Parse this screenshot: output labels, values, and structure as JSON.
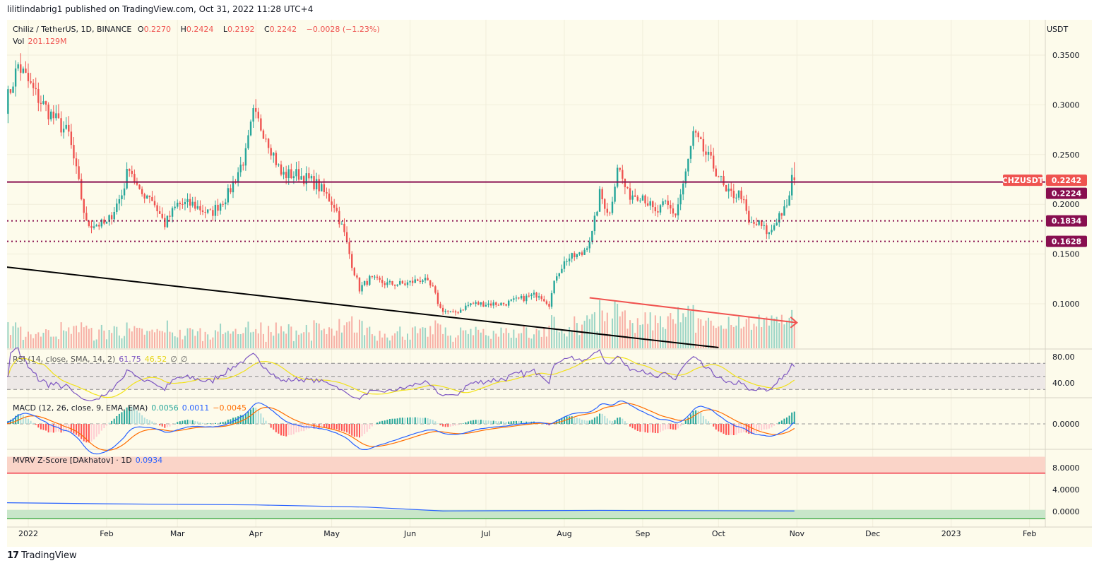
{
  "published": "lilitlindabrig1 published on TradingView.com, Oct 31, 2022 11:28 UTC+4",
  "legend": {
    "symbol": "Chiliz / TetherUS, 1D, BINANCE",
    "o_label": "O",
    "o": "0.2270",
    "h_label": "H",
    "h": "0.2424",
    "l_label": "L",
    "l": "0.2192",
    "c_label": "C",
    "c": "0.2242",
    "change": "−0.0028 (−1.23%)",
    "vol_label": "Vol",
    "vol": "201.129M"
  },
  "currency": "USDT",
  "footer_logo": "TradingView",
  "colors": {
    "up": "#26a69a",
    "down": "#ef5350",
    "level": "#880e4f",
    "background": "#fdfbeb",
    "rsi": "#7e57c2",
    "rsi_ma": "#f5e51b",
    "macd": "#2962ff",
    "signal": "#ff6d00",
    "mvrv": "#2962ff"
  },
  "chart_data": [
    {
      "type": "candlestick",
      "title": "Chiliz / TetherUS, 1D, BINANCE",
      "y_axis_ticks": [
        "0.3500",
        "0.3000",
        "0.2500",
        "0.2000",
        "0.1500",
        "0.1000"
      ],
      "ylim": [
        0.05,
        0.37
      ],
      "x_axis_ticks": [
        "2022",
        "Feb",
        "Mar",
        "Apr",
        "May",
        "Jun",
        "Jul",
        "Aug",
        "Sep",
        "Oct",
        "Nov",
        "Dec",
        "2023",
        "Feb"
      ],
      "close_keypoints": [
        [
          "2021-12-23",
          0.3
        ],
        [
          "2021-12-28",
          0.34
        ],
        [
          "2022-01-04",
          0.31
        ],
        [
          "2022-01-10",
          0.29
        ],
        [
          "2022-01-17",
          0.27
        ],
        [
          "2022-01-21",
          0.22
        ],
        [
          "2022-01-24",
          0.18
        ],
        [
          "2022-02-01",
          0.18
        ],
        [
          "2022-02-07",
          0.21
        ],
        [
          "2022-02-10",
          0.24
        ],
        [
          "2022-02-14",
          0.21
        ],
        [
          "2022-02-18",
          0.21
        ],
        [
          "2022-02-24",
          0.18
        ],
        [
          "2022-03-01",
          0.2
        ],
        [
          "2022-03-07",
          0.2
        ],
        [
          "2022-03-14",
          0.19
        ],
        [
          "2022-03-21",
          0.21
        ],
        [
          "2022-03-28",
          0.25
        ],
        [
          "2022-03-31",
          0.29
        ],
        [
          "2022-04-05",
          0.27
        ],
        [
          "2022-04-11",
          0.23
        ],
        [
          "2022-04-18",
          0.23
        ],
        [
          "2022-04-25",
          0.22
        ],
        [
          "2022-05-02",
          0.2
        ],
        [
          "2022-05-06",
          0.17
        ],
        [
          "2022-05-09",
          0.14
        ],
        [
          "2022-05-12",
          0.115
        ],
        [
          "2022-05-16",
          0.125
        ],
        [
          "2022-05-23",
          0.12
        ],
        [
          "2022-05-30",
          0.12
        ],
        [
          "2022-06-06",
          0.125
        ],
        [
          "2022-06-10",
          0.115
        ],
        [
          "2022-06-13",
          0.095
        ],
        [
          "2022-06-18",
          0.09
        ],
        [
          "2022-06-25",
          0.1
        ],
        [
          "2022-07-01",
          0.1
        ],
        [
          "2022-07-08",
          0.1
        ],
        [
          "2022-07-15",
          0.105
        ],
        [
          "2022-07-22",
          0.11
        ],
        [
          "2022-07-26",
          0.1
        ],
        [
          "2022-07-29",
          0.13
        ],
        [
          "2022-08-02",
          0.145
        ],
        [
          "2022-08-08",
          0.15
        ],
        [
          "2022-08-12",
          0.17
        ],
        [
          "2022-08-15",
          0.21
        ],
        [
          "2022-08-19",
          0.19
        ],
        [
          "2022-08-22",
          0.24
        ],
        [
          "2022-08-26",
          0.21
        ],
        [
          "2022-09-01",
          0.21
        ],
        [
          "2022-09-06",
          0.19
        ],
        [
          "2022-09-10",
          0.2
        ],
        [
          "2022-09-14",
          0.19
        ],
        [
          "2022-09-18",
          0.23
        ],
        [
          "2022-09-21",
          0.27
        ],
        [
          "2022-09-26",
          0.25
        ],
        [
          "2022-10-01",
          0.23
        ],
        [
          "2022-10-04",
          0.21
        ],
        [
          "2022-10-10",
          0.21
        ],
        [
          "2022-10-13",
          0.18
        ],
        [
          "2022-10-17",
          0.18
        ],
        [
          "2022-10-21",
          0.17
        ],
        [
          "2022-10-25",
          0.19
        ],
        [
          "2022-10-28",
          0.195
        ],
        [
          "2022-10-30",
          0.227
        ],
        [
          "2022-10-31",
          0.2242
        ]
      ],
      "last_price_label": {
        "symbol": "CHZUSDT",
        "value": "0.2242"
      },
      "horizontal_levels": [
        {
          "value": 0.2224,
          "label": "0.2224",
          "style": "solid"
        },
        {
          "value": 0.1834,
          "label": "0.1834",
          "style": "dotted"
        },
        {
          "value": 0.1628,
          "label": "0.1628",
          "style": "dotted"
        }
      ],
      "trendline": [
        [
          "2021-12-23",
          0.137
        ],
        [
          "2022-10-01",
          0.056
        ]
      ],
      "volume_arrow": [
        [
          "2022-08-11",
          0.106
        ],
        [
          "2022-11-01",
          0.081
        ]
      ]
    },
    {
      "type": "line",
      "title": "RSI (14, close, SMA, 14, 2)",
      "values_shown": [
        "61.75",
        "46.52",
        "∅",
        "∅"
      ],
      "y_axis_ticks": [
        "80.00",
        "40.00"
      ],
      "bands": [
        70,
        50,
        30
      ]
    },
    {
      "type": "line+bar",
      "title": "MACD (12, 26, close, 9, EMA, EMA)",
      "values_shown": [
        "0.0056",
        "0.0011",
        "−0.0045"
      ],
      "y_axis_ticks": [
        "0.0000"
      ]
    },
    {
      "type": "line",
      "title": "MVRV Z-Score [DAkhatov] · 1D",
      "values_shown": [
        "0.0934"
      ],
      "y_axis_ticks": [
        "8.0000",
        "4.0000",
        "0.0000"
      ],
      "keypoints": [
        [
          "2021-12-23",
          1.6
        ],
        [
          "2022-02-01",
          1.4
        ],
        [
          "2022-04-01",
          1.2
        ],
        [
          "2022-05-15",
          0.8
        ],
        [
          "2022-06-14",
          0.1
        ],
        [
          "2022-08-15",
          0.2
        ],
        [
          "2022-10-31",
          0.0934
        ]
      ]
    }
  ]
}
